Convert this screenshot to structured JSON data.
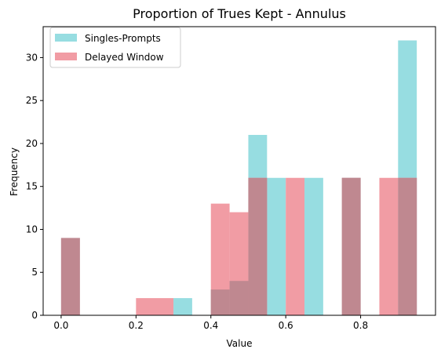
{
  "chart_data": {
    "type": "bar",
    "title": "Proportion of Trues Kept - Annulus",
    "xlabel": "Value",
    "ylabel": "Frequency",
    "xlim": [
      -0.048,
      1.0
    ],
    "ylim": [
      0,
      33.6
    ],
    "x_ticks": [
      {
        "value": 0.0,
        "label": "0.0"
      },
      {
        "value": 0.2,
        "label": "0.2"
      },
      {
        "value": 0.4,
        "label": "0.4"
      },
      {
        "value": 0.6,
        "label": "0.6"
      },
      {
        "value": 0.8,
        "label": "0.8"
      }
    ],
    "y_ticks": [
      {
        "value": 0,
        "label": "0"
      },
      {
        "value": 5,
        "label": "5"
      },
      {
        "value": 10,
        "label": "10"
      },
      {
        "value": 15,
        "label": "15"
      },
      {
        "value": 20,
        "label": "20"
      },
      {
        "value": 25,
        "label": "25"
      },
      {
        "value": 30,
        "label": "30"
      }
    ],
    "legend_position": "top-left",
    "overlap_color": "#bf8890",
    "series": [
      {
        "name": "Singles-Prompts",
        "color": "#97dde1",
        "bins": [
          {
            "x0": 0.0,
            "x1": 0.05,
            "count": 9
          },
          {
            "x0": 0.3,
            "x1": 0.35,
            "count": 2
          },
          {
            "x0": 0.4,
            "x1": 0.45,
            "count": 3
          },
          {
            "x0": 0.45,
            "x1": 0.5,
            "count": 4
          },
          {
            "x0": 0.5,
            "x1": 0.55,
            "count": 21
          },
          {
            "x0": 0.55,
            "x1": 0.6,
            "count": 16
          },
          {
            "x0": 0.65,
            "x1": 0.7,
            "count": 16
          },
          {
            "x0": 0.75,
            "x1": 0.8,
            "count": 16
          },
          {
            "x0": 0.9,
            "x1": 0.95,
            "count": 32
          }
        ]
      },
      {
        "name": "Delayed Window",
        "color": "#f19ca4",
        "bins": [
          {
            "x0": 0.0,
            "x1": 0.05,
            "count": 9
          },
          {
            "x0": 0.2,
            "x1": 0.3,
            "count": 2
          },
          {
            "x0": 0.4,
            "x1": 0.45,
            "count": 13
          },
          {
            "x0": 0.45,
            "x1": 0.5,
            "count": 12
          },
          {
            "x0": 0.5,
            "x1": 0.55,
            "count": 16
          },
          {
            "x0": 0.6,
            "x1": 0.65,
            "count": 16
          },
          {
            "x0": 0.75,
            "x1": 0.8,
            "count": 16
          },
          {
            "x0": 0.85,
            "x1": 0.9,
            "count": 16
          },
          {
            "x0": 0.9,
            "x1": 0.95,
            "count": 16
          }
        ]
      }
    ]
  }
}
